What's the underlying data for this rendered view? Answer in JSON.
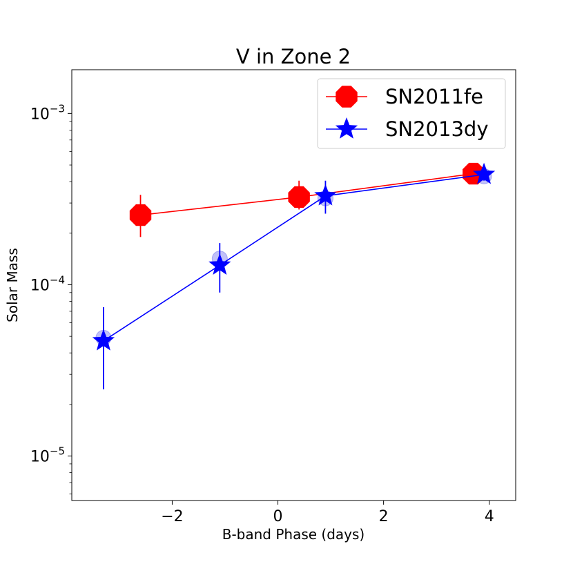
{
  "chart_data": {
    "type": "line",
    "title": "V in Zone 2",
    "xlabel": "B-band Phase (days)",
    "ylabel": "Solar Mass",
    "yscale": "log",
    "xlim": [
      -3.9,
      4.5
    ],
    "ylim": [
      5.5e-06,
      0.0018
    ],
    "xticks": [
      {
        "value": -2,
        "label": "−2"
      },
      {
        "value": 0,
        "label": "0"
      },
      {
        "value": 2,
        "label": "2"
      },
      {
        "value": 4,
        "label": "4"
      }
    ],
    "yticks": [
      {
        "value": 1e-05,
        "base": "10",
        "exp": "−5"
      },
      {
        "value": 0.0001,
        "base": "10",
        "exp": "−4"
      },
      {
        "value": 0.001,
        "base": "10",
        "exp": "−3"
      }
    ],
    "legend_position": "top-right",
    "series": [
      {
        "name": "SN2011fe",
        "color": "#ff0000",
        "marker": "octagon",
        "x": [
          -2.6,
          0.4,
          3.7
        ],
        "y": [
          0.000255,
          0.000325,
          0.000445
        ],
        "yerr_low": [
          0.00019,
          0.000275,
          0.000405
        ],
        "yerr_high": [
          0.000335,
          0.000405,
          0.00049
        ]
      },
      {
        "name": "SN2013dy",
        "color": "#0000ff",
        "marker": "star",
        "x": [
          -3.3,
          -1.1,
          0.9,
          3.9
        ],
        "y": [
          4.7e-05,
          0.00013,
          0.00033,
          0.00044
        ],
        "yerr_low": [
          2.45e-05,
          9e-05,
          0.00026,
          0.000405
        ],
        "yerr_high": [
          7.4e-05,
          0.000175,
          0.000405,
          0.00049
        ],
        "aux_points": {
          "color": "#8c8cf2",
          "x": [
            -3.3,
            -1.1,
            0.9,
            3.9
          ],
          "y": [
            4.9e-05,
            0.000142,
            0.00032,
            0.00043
          ]
        }
      }
    ]
  }
}
